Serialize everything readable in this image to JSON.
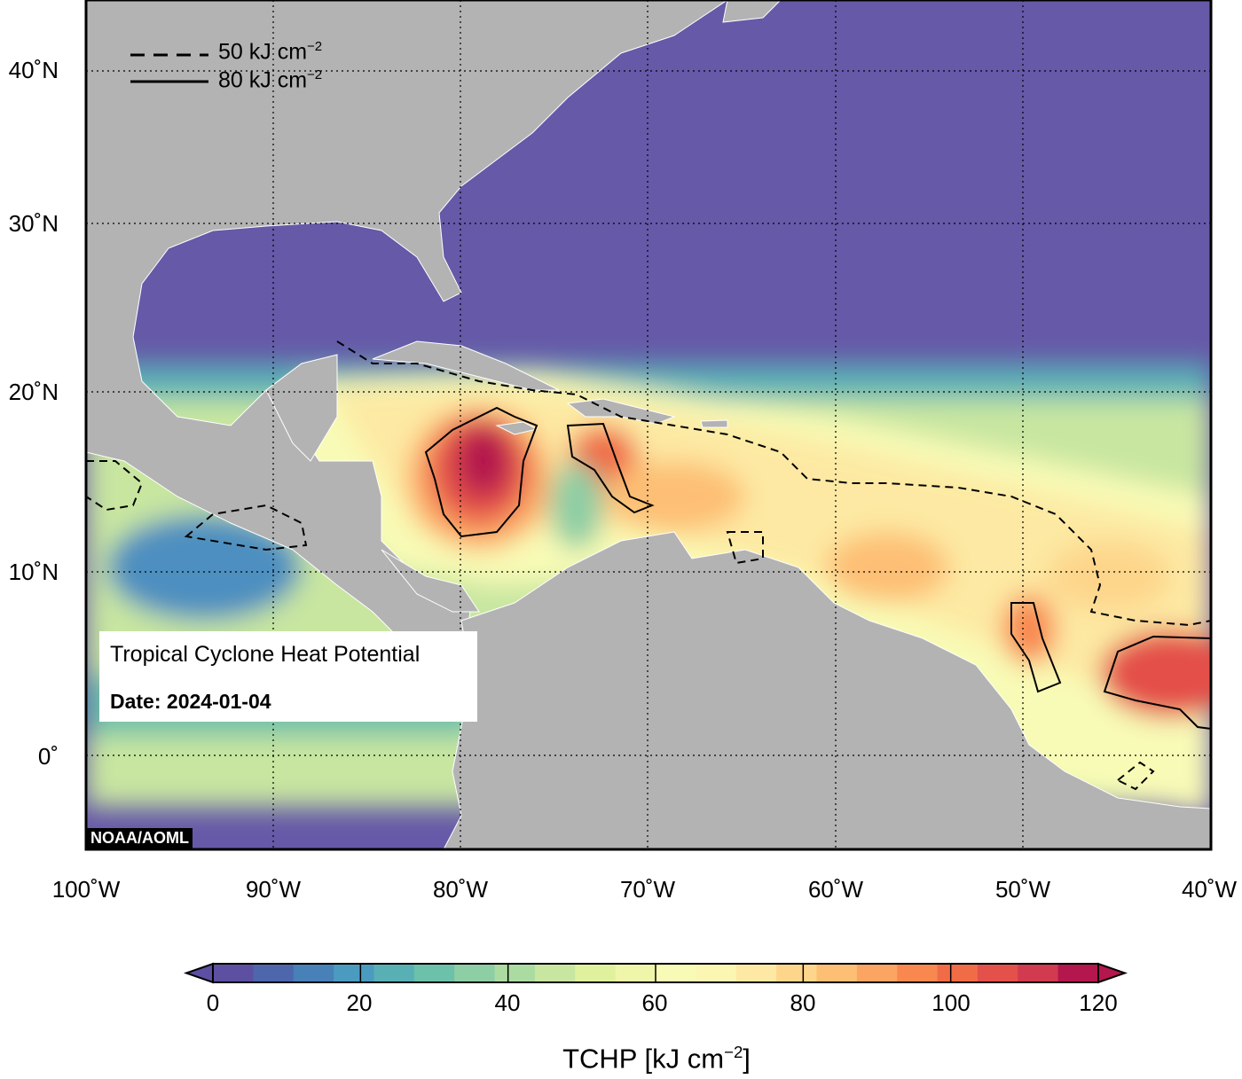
{
  "map": {
    "title": "Tropical Cyclone Heat Potential",
    "date_label": "Date: 2024-01-04",
    "credit": "NOAA/AOML",
    "lat_labels": [
      "40˚N",
      "30˚N",
      "20˚N",
      "10˚N",
      "0˚"
    ],
    "lon_labels": [
      "100˚W",
      "90˚W",
      "80˚W",
      "70˚W",
      "60˚W",
      "50˚W",
      "40˚W"
    ],
    "extent": {
      "lon": [
        -100,
        -40
      ],
      "lat": [
        -5,
        44
      ]
    },
    "legend": [
      {
        "style": "dashed",
        "label": "50 kJ cm",
        "sup": "−2"
      },
      {
        "style": "solid",
        "label": "80 kJ cm",
        "sup": "−2"
      }
    ],
    "colors": {
      "ocean_low": "#6659a8",
      "land": "#b3b3b3",
      "high": "#b4164e"
    }
  },
  "colorbar": {
    "ticks": [
      "0",
      "20",
      "40",
      "60",
      "80",
      "100",
      "120"
    ],
    "title_main": "TCHP [kJ cm",
    "title_sup": "−2",
    "title_end": "]",
    "colors": [
      "#5d4fa1",
      "#4e66ac",
      "#4880b8",
      "#4b9bc0",
      "#58b0b5",
      "#6dc0a9",
      "#8dcea4",
      "#acdba2",
      "#c8e6a0",
      "#e0f19e",
      "#eff6aa",
      "#f8fbb6",
      "#fcf6b3",
      "#fde9a3",
      "#fdd68b",
      "#fdbf74",
      "#fca562",
      "#f8884f",
      "#f06c47",
      "#e4504a",
      "#d13a4f",
      "#b4164e"
    ]
  }
}
